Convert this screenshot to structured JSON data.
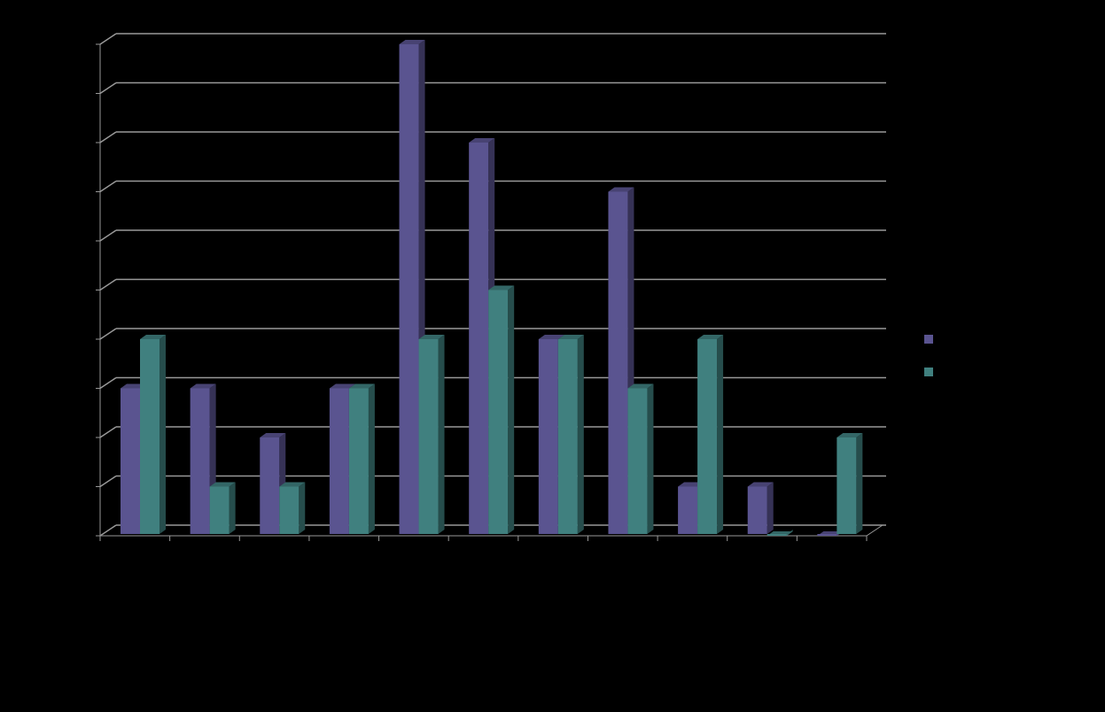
{
  "chart_data": {
    "type": "bar3d",
    "categories": [
      null,
      null,
      null,
      null,
      null,
      null,
      null,
      null,
      null,
      null,
      null
    ],
    "series": [
      {
        "color": "#5a5490",
        "values": [
          3,
          3,
          2,
          3,
          10,
          8,
          4,
          7,
          1,
          1,
          0
        ]
      },
      {
        "color": "#40807f",
        "values": [
          4,
          1,
          1,
          3,
          4,
          5,
          4,
          3,
          4,
          0,
          2
        ]
      }
    ],
    "ylim": [
      0,
      10
    ],
    "yticks": [
      0,
      1,
      2,
      3,
      4,
      5,
      6,
      7,
      8,
      9,
      10
    ],
    "grid": true
  }
}
